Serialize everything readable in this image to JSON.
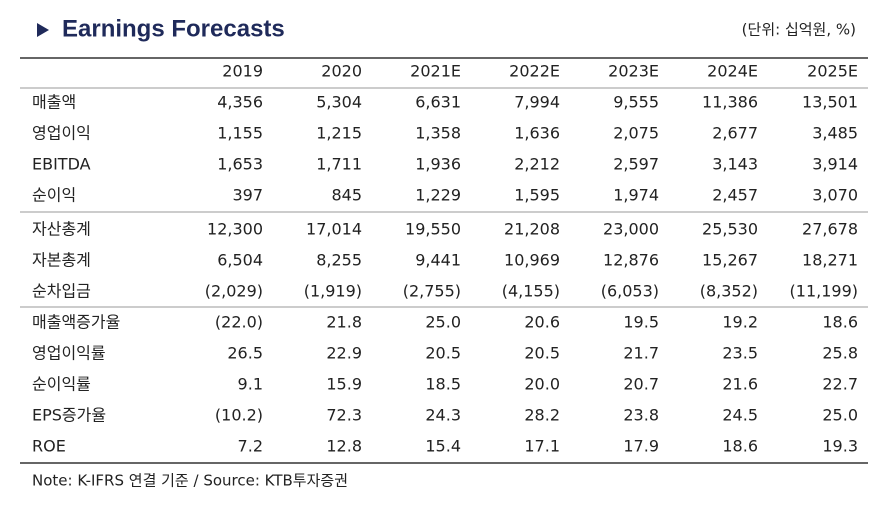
{
  "header": {
    "title": "Earnings Forecasts",
    "unit": "(단위: 십억원, %)"
  },
  "table": {
    "columns": [
      "2019",
      "2020",
      "2021E",
      "2022E",
      "2023E",
      "2024E",
      "2025E"
    ],
    "groups": [
      [
        [
          "매출액",
          "4,356",
          "5,304",
          "6,631",
          "7,994",
          "9,555",
          "11,386",
          "13,501"
        ],
        [
          "영업이익",
          "1,155",
          "1,215",
          "1,358",
          "1,636",
          "2,075",
          "2,677",
          "3,485"
        ],
        [
          "EBITDA",
          "1,653",
          "1,711",
          "1,936",
          "2,212",
          "2,597",
          "3,143",
          "3,914"
        ],
        [
          "순이익",
          "397",
          "845",
          "1,229",
          "1,595",
          "1,974",
          "2,457",
          "3,070"
        ]
      ],
      [
        [
          "자산총계",
          "12,300",
          "17,014",
          "19,550",
          "21,208",
          "23,000",
          "25,530",
          "27,678"
        ],
        [
          "자본총계",
          "6,504",
          "8,255",
          "9,441",
          "10,969",
          "12,876",
          "15,267",
          "18,271"
        ],
        [
          "순차입금",
          "(2,029)",
          "(1,919)",
          "(2,755)",
          "(4,155)",
          "(6,053)",
          "(8,352)",
          "(11,199)"
        ]
      ],
      [
        [
          "매출액증가율",
          "(22.0)",
          "21.8",
          "25.0",
          "20.6",
          "19.5",
          "19.2",
          "18.6"
        ],
        [
          "영업이익률",
          "26.5",
          "22.9",
          "20.5",
          "20.5",
          "21.7",
          "23.5",
          "25.8"
        ],
        [
          "순이익률",
          "9.1",
          "15.9",
          "18.5",
          "20.0",
          "20.7",
          "21.6",
          "22.7"
        ],
        [
          "EPS증가율",
          "(10.2)",
          "72.3",
          "24.3",
          "28.2",
          "23.8",
          "24.5",
          "25.0"
        ],
        [
          "ROE",
          "7.2",
          "12.8",
          "15.4",
          "17.1",
          "17.9",
          "18.6",
          "19.3"
        ]
      ]
    ]
  },
  "note": "Note: K-IFRS 연결 기준 / Source: KTB투자증권"
}
